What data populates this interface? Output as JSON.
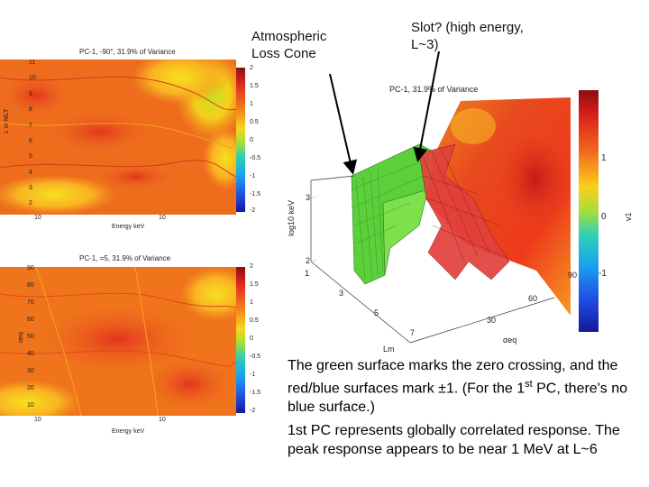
{
  "annotations": {
    "loss_cone": "Atmospheric Loss Cone",
    "slot": "Slot? (high energy, L~3)"
  },
  "top_plot": {
    "title_prefix": "PC-1,",
    "title_rest": "-90°, 31.9% of Variance",
    "xlabel": "Energy keV",
    "ylabel": "L or MLT",
    "yticks": [
      "11",
      "10",
      "9",
      "8",
      "7",
      "6",
      "5",
      "4",
      "3",
      "2"
    ],
    "xticks": [
      "10",
      "10"
    ],
    "cbar_ticks": [
      "2",
      "1.5",
      "1",
      "0.5",
      "0",
      "-0.5",
      "-1",
      "-1.5",
      "-2"
    ]
  },
  "bottom_plot": {
    "title_prefix": "PC-1,",
    "title_rest": "=5, 31.9% of Variance",
    "xlabel": "Energy keV",
    "ylabel": "αeq",
    "yticks": [
      "90",
      "80",
      "70",
      "60",
      "50",
      "40",
      "30",
      "20",
      "10"
    ],
    "xticks": [
      "10",
      "10"
    ],
    "cbar_ticks": [
      "2",
      "1.5",
      "1",
      "0.5",
      "0",
      "-0.5",
      "-1",
      "-1.5",
      "-2"
    ]
  },
  "plot3d": {
    "title": "PC-1, 31.9% of Variance",
    "zlabel": "log10 keV",
    "ztick_3": "3",
    "ztick_2": "2",
    "ltick_1": "1",
    "ltick_3": "3",
    "ltick_5": "5",
    "ltick_7": "7",
    "axis_l": "Lm",
    "aticks": [
      "90",
      "60",
      "30"
    ],
    "axis_a": "αeq",
    "cbar_ticks": [
      "1",
      "0",
      "-1"
    ],
    "cbar_label": "v1"
  },
  "caption1": {
    "a": "The green surface marks the zero crossing, and the red/blue surfaces mark ±1. (For the 1",
    "sup": "st",
    "b": " PC, there's no blue surface.)"
  },
  "caption2": "1st PC represents globally correlated response. The peak response appears to be near 1 MeV at L~6"
}
